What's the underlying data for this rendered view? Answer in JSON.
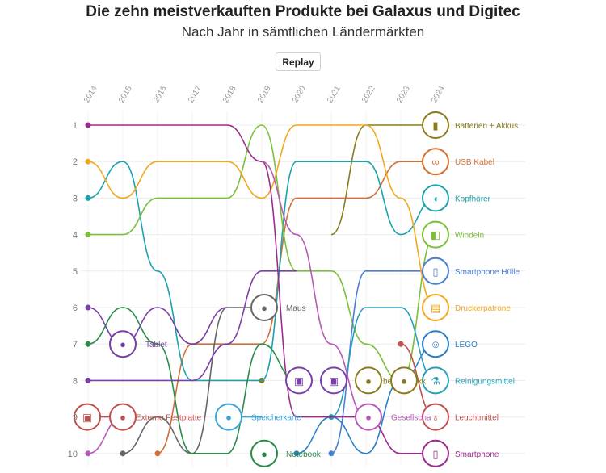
{
  "title": "Die zehn meistverkauften Produkte bei Galaxus und Digitec",
  "subtitle": "Nach Jahr in sämtlichen Ländermärkten",
  "replay_label": "Replay",
  "chart_data": {
    "type": "line",
    "title": "Die zehn meistverkauften Produkte bei Galaxus und Digitec",
    "subtitle": "Nach Jahr in sämtlichen Ländermärkten",
    "x": [
      "2014",
      "2015",
      "2016",
      "2017",
      "2018",
      "2019",
      "2020",
      "2021",
      "2022",
      "2023",
      "2024"
    ],
    "yticks": [
      1,
      2,
      3,
      4,
      5,
      6,
      7,
      8,
      9,
      10
    ],
    "y_inverted": true,
    "grid": true,
    "series": [
      {
        "name": "Batterien + Akkus",
        "color": "#8a7a1f",
        "values": [
          null,
          null,
          null,
          null,
          null,
          8,
          null,
          4,
          1,
          1,
          1
        ]
      },
      {
        "name": "USB Kabel",
        "color": "#d26f35",
        "values": [
          null,
          null,
          10,
          7,
          7,
          7,
          3,
          3,
          3,
          2,
          2
        ]
      },
      {
        "name": "Kopfhörer",
        "color": "#1aa3ad",
        "values": [
          3,
          2,
          5,
          8,
          8,
          8,
          2,
          2,
          2,
          4,
          3
        ]
      },
      {
        "name": "Windeln",
        "color": "#7bbf3a",
        "values": [
          4,
          4,
          3,
          3,
          3,
          1,
          5,
          5,
          7,
          8,
          4
        ]
      },
      {
        "name": "Smartphone Hülle",
        "color": "#4a7fd4",
        "values": [
          null,
          null,
          null,
          null,
          null,
          null,
          null,
          10,
          5,
          5,
          5
        ]
      },
      {
        "name": "Druckerpatrone",
        "color": "#f2a81d",
        "values": [
          2,
          3,
          2,
          2,
          2,
          3,
          1,
          1,
          1,
          3,
          6
        ]
      },
      {
        "name": "LEGO",
        "color": "#2a7fc9",
        "values": [
          null,
          null,
          null,
          null,
          null,
          null,
          10,
          9,
          10,
          8,
          7
        ]
      },
      {
        "name": "Reinigungsmittel",
        "color": "#26a0b8",
        "values": [
          null,
          null,
          null,
          null,
          null,
          null,
          null,
          9,
          6,
          6,
          8
        ]
      },
      {
        "name": "Leuchtmittel",
        "color": "#c0504d",
        "values": [
          null,
          null,
          null,
          null,
          null,
          null,
          null,
          null,
          null,
          7,
          9
        ]
      },
      {
        "name": "Smartphone",
        "color": "#9b2c8e",
        "values": [
          1,
          1,
          1,
          1,
          1,
          2,
          9,
          9,
          9,
          10,
          10
        ]
      },
      {
        "name": "Tablet",
        "color": "#7b3fa8",
        "values": [
          6,
          7,
          6,
          7,
          6,
          null,
          null,
          null,
          null,
          null,
          null
        ]
      },
      {
        "name": "Maus",
        "color": "#666666",
        "values": [
          null,
          10,
          9,
          10,
          6,
          6,
          null,
          null,
          null,
          null,
          null
        ]
      },
      {
        "name": "Externe Festplatte",
        "color": "#c0504d",
        "values": [
          9,
          9,
          null,
          null,
          null,
          null,
          null,
          null,
          null,
          null,
          null
        ]
      },
      {
        "name": "Speicherkarte",
        "color": "#3aa6d9",
        "values": [
          null,
          null,
          null,
          null,
          9,
          9,
          null,
          null,
          null,
          null,
          null
        ]
      },
      {
        "name": "Notebook",
        "color": "#2a8c4a",
        "values": [
          7,
          6,
          7,
          10,
          10,
          7,
          8,
          null,
          null,
          null,
          null
        ]
      },
      {
        "name": "Gesellschaftsspiel",
        "color": "#b55ab6",
        "values": [
          10,
          9,
          null,
          null,
          null,
          2,
          4,
          7,
          9,
          null,
          null
        ]
      },
      {
        "name": "",
        "color": "#7b3fa8",
        "values": [
          8,
          8,
          8,
          8,
          7,
          5,
          5,
          null,
          null,
          null,
          null
        ]
      }
    ],
    "labels_right": [
      "Batterien + Akkus",
      "USB Kabel",
      "Kopfhörer",
      "Windeln",
      "Smartphone Hülle",
      "Druckerpatrone",
      "LEGO",
      "Reinigungsmittel",
      "Leuchtmittel",
      "Smartphone"
    ],
    "inline_labels": [
      {
        "text": "Tablet",
        "series": "Tablet"
      },
      {
        "text": "Maus",
        "series": "Maus"
      },
      {
        "text": "Externe Festplatte",
        "series": "Externe Festplatte"
      },
      {
        "text": "Speicherkarte",
        "series": "Speicherkarte"
      },
      {
        "text": "Notebook",
        "series": "Notebook"
      },
      {
        "text": "Gesellscha",
        "series": "Gesellschaftsspiel"
      },
      {
        "text": "be",
        "series": "Batterien + Akkus"
      },
      {
        "text": "kk",
        "series": "Batterien + Akkus"
      }
    ]
  }
}
